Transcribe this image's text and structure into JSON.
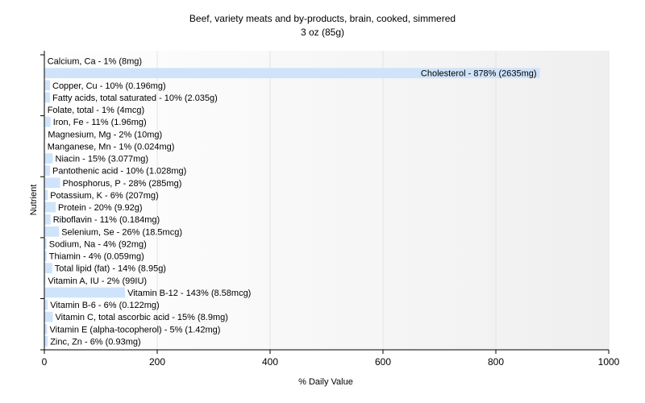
{
  "chart_data": {
    "type": "bar",
    "orientation": "horizontal",
    "title": "Beef, variety meats and by-products, brain, cooked, simmered",
    "subtitle": "3 oz (85g)",
    "xlabel": "% Daily Value",
    "ylabel": "Nutrient",
    "xlim": [
      0,
      1000
    ],
    "xticks": [
      "0",
      "200",
      "400",
      "600",
      "800",
      "1000"
    ],
    "grid": true,
    "bar_color": "#cfe3fb",
    "categories": [
      "Calcium, Ca",
      "Cholesterol",
      "Copper, Cu",
      "Fatty acids, total saturated",
      "Folate, total",
      "Iron, Fe",
      "Magnesium, Mg",
      "Manganese, Mn",
      "Niacin",
      "Pantothenic acid",
      "Phosphorus, P",
      "Potassium, K",
      "Protein",
      "Riboflavin",
      "Selenium, Se",
      "Sodium, Na",
      "Thiamin",
      "Total lipid (fat)",
      "Vitamin A, IU",
      "Vitamin B-12",
      "Vitamin B-6",
      "Vitamin C, total ascorbic acid",
      "Vitamin E (alpha-tocopherol)",
      "Zinc, Zn"
    ],
    "values": [
      1,
      878,
      10,
      10,
      1,
      11,
      2,
      1,
      15,
      10,
      28,
      6,
      20,
      11,
      26,
      4,
      4,
      14,
      2,
      143,
      6,
      15,
      5,
      6
    ],
    "labels": [
      "Calcium, Ca - 1% (8mg)",
      "Cholesterol - 878% (2635mg)",
      "Copper, Cu - 10% (0.196mg)",
      "Fatty acids, total saturated - 10% (2.035g)",
      "Folate, total - 1% (4mcg)",
      "Iron, Fe - 11% (1.96mg)",
      "Magnesium, Mg - 2% (10mg)",
      "Manganese, Mn - 1% (0.024mg)",
      "Niacin - 15% (3.077mg)",
      "Pantothenic acid - 10% (1.028mg)",
      "Phosphorus, P - 28% (285mg)",
      "Potassium, K - 6% (207mg)",
      "Protein - 20% (9.92g)",
      "Riboflavin - 11% (0.184mg)",
      "Selenium, Se - 26% (18.5mcg)",
      "Sodium, Na - 4% (92mg)",
      "Thiamin - 4% (0.059mg)",
      "Total lipid (fat) - 14% (8.95g)",
      "Vitamin A, IU - 2% (99IU)",
      "Vitamin B-12 - 143% (8.58mcg)",
      "Vitamin B-6 - 6% (0.122mg)",
      "Vitamin C, total ascorbic acid - 15% (8.9mg)",
      "Vitamin E (alpha-tocopherol) - 5% (1.42mg)",
      "Zinc, Zn - 6% (0.93mg)"
    ]
  }
}
